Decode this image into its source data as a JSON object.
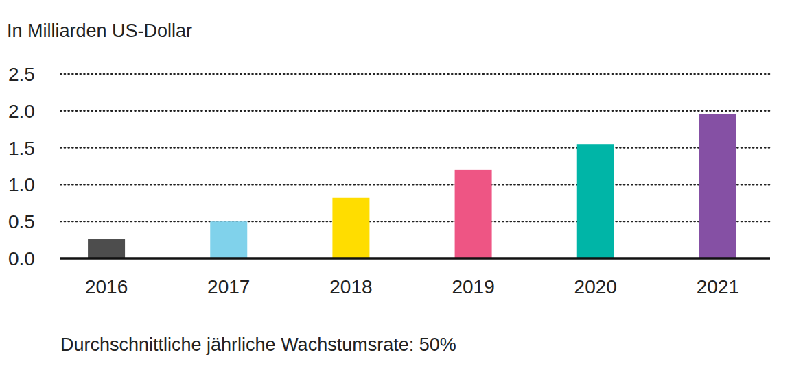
{
  "chart_data": {
    "type": "bar",
    "y_label": "In Milliarden US-Dollar",
    "annotations": [
      "Durchschnittliche jährliche Wachstumsrate: 50%"
    ],
    "categories": [
      "2016",
      "2017",
      "2018",
      "2019",
      "2020",
      "2021"
    ],
    "values": [
      0.26,
      0.5,
      0.82,
      1.2,
      1.55,
      1.96
    ],
    "colors": [
      "#4d4d4d",
      "#80d2eb",
      "#ffdd00",
      "#ee5584",
      "#00b5a7",
      "#8550a4"
    ],
    "ylim": [
      0,
      2.5
    ],
    "yticks": [
      {
        "value": 0,
        "label": "0.0"
      },
      0.5,
      {
        "value": 1,
        "label": "1.0"
      },
      1.5,
      {
        "value": 2,
        "label": "2.0"
      },
      2.5
    ],
    "grid": true
  }
}
